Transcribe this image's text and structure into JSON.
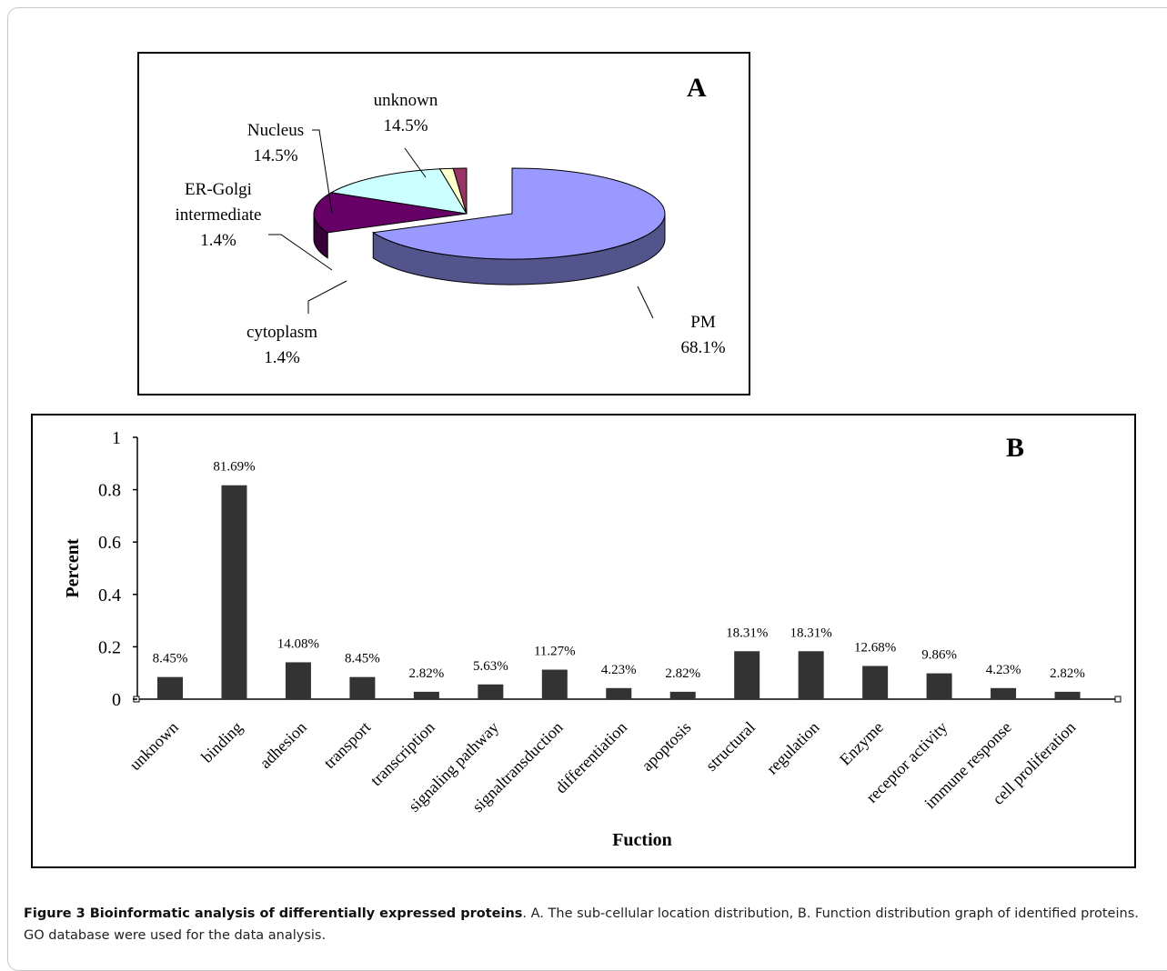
{
  "chart_data": [
    {
      "type": "pie",
      "panel_label": "A",
      "slices": [
        {
          "name": "PM",
          "label": "68.1%",
          "value": 68.1,
          "color": "#9999ff"
        },
        {
          "name": "unknown",
          "label": "14.5%",
          "value": 14.5,
          "color": "#660066"
        },
        {
          "name": "Nucleus",
          "label": "14.5%",
          "value": 14.5,
          "color": "#ccffff"
        },
        {
          "name": "ER-Golgi intermediate",
          "label": "1.4%",
          "value": 1.4,
          "color": "#ffffcc"
        },
        {
          "name": "cytoplasm",
          "label": "1.4%",
          "value": 1.4,
          "color": "#993366"
        }
      ],
      "label_text": {
        "unknown": [
          "unknown",
          "14.5%"
        ],
        "Nucleus": [
          "Nucleus",
          "14.5%"
        ],
        "ER-Golgi intermediate": [
          "ER-Golgi",
          "intermediate",
          "1.4%"
        ],
        "cytoplasm": [
          "cytoplasm",
          "1.4%"
        ],
        "PM": [
          "PM",
          "68.1%"
        ]
      }
    },
    {
      "type": "bar",
      "panel_label": "B",
      "xlabel": "Fuction",
      "ylabel": "Percent",
      "ylim": [
        0,
        1
      ],
      "yticks": [
        "0",
        "0.2",
        "0.4",
        "0.6",
        "0.8",
        "1"
      ],
      "bar_color": "#333333",
      "categories": [
        "unknown",
        "binding",
        "adhesion",
        "transport",
        "transcription",
        "signaling pathway",
        "signaltransduction",
        "differentiation",
        "apoptosis",
        "structural",
        "regulation",
        "Enzyme",
        "receptor activity",
        "immune response",
        "cell proliferation"
      ],
      "values": [
        0.0845,
        0.8169,
        0.1408,
        0.0845,
        0.0282,
        0.0563,
        0.1127,
        0.0423,
        0.0282,
        0.1831,
        0.1831,
        0.1268,
        0.0986,
        0.0423,
        0.0282
      ],
      "data_labels": [
        "8.45%",
        "81.69%",
        "14.08%",
        "8.45%",
        "2.82%",
        "5.63%",
        "11.27%",
        "4.23%",
        "2.82%",
        "18.31%",
        "18.31%",
        "12.68%",
        "9.86%",
        "4.23%",
        "2.82%"
      ]
    }
  ],
  "caption": {
    "bold": "Figure 3 Bioinformatic analysis of differentially expressed proteins",
    "text": ". A. The sub-cellular location distribution, B. Function distribution graph of identified proteins. GO database were used for the data analysis."
  }
}
